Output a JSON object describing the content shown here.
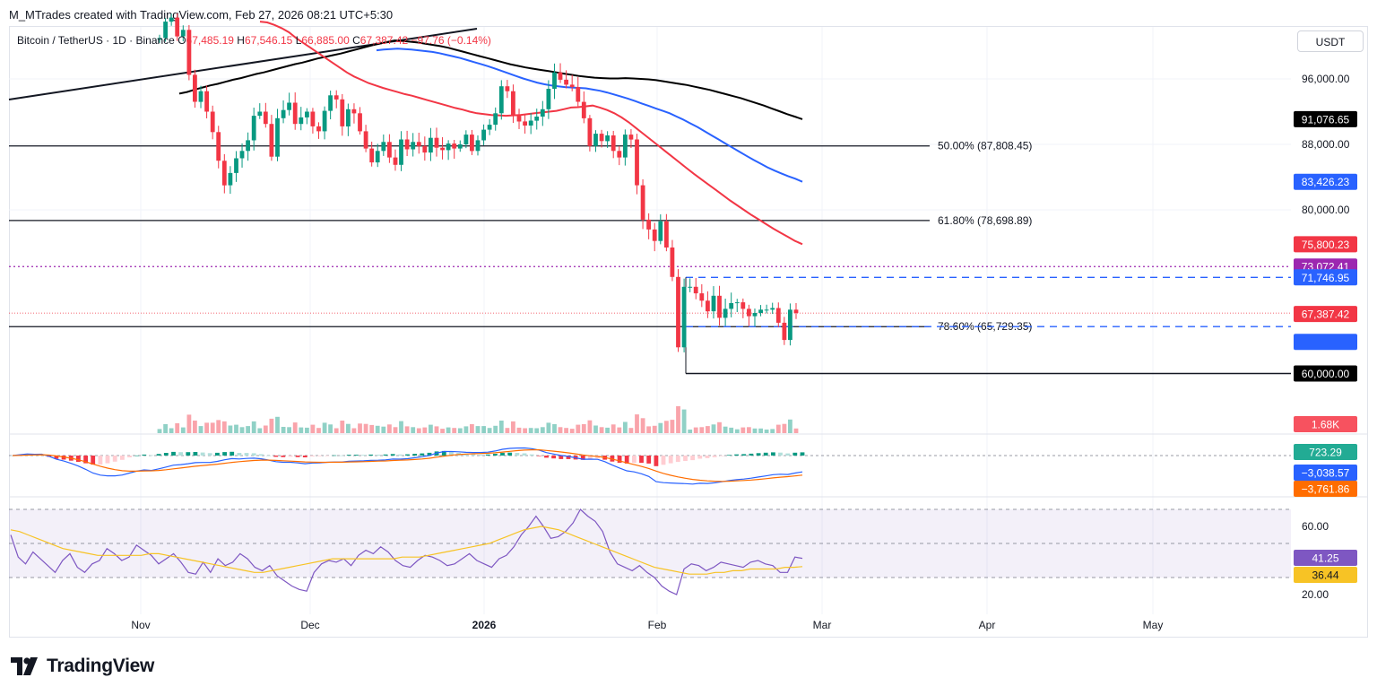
{
  "header": {
    "attribution": "M_MTrades created with TradingView.com, Feb 27, 2026 08:21 UTC+5:30",
    "symbol": "Bitcoin / TetherUS · 1D · Binance",
    "open_label": "O",
    "open": "67,485.19",
    "high_label": "H",
    "high": "67,546.15",
    "low_label": "L",
    "low": "66,885.00",
    "close_label": "C",
    "close": "67,387.42",
    "change": "−97.76 (−0.14%)",
    "currency": "USDT"
  },
  "brand": "TradingView",
  "colors": {
    "up": "#089981",
    "down": "#f23645",
    "ema50": "#f23645",
    "ema100": "#2962ff",
    "ema200": "#000000",
    "macd": "#2962ff",
    "signal": "#ff6d00",
    "rsi": "#7e57c2",
    "rsi_ma": "#f7c325"
  },
  "chart_data": [
    {
      "type": "candlestick",
      "title": "Bitcoin / TetherUS · 1D · Binance",
      "x_ticks": [
        "Nov",
        "Dec",
        "2026",
        "Feb",
        "Mar",
        "Apr",
        "May"
      ],
      "y_ticks": [
        "80,000.00",
        "88,000.00",
        "96,000.00"
      ],
      "ylim": [
        56000,
        104000
      ],
      "closes": [
        101000,
        103000,
        103500,
        101200,
        102000,
        96500,
        93200,
        94500,
        92000,
        89500,
        86000,
        83000,
        84500,
        86300,
        87200,
        88500,
        91500,
        92000,
        90500,
        86500,
        91200,
        92200,
        93100,
        90500,
        91300,
        92000,
        90200,
        89600,
        92100,
        94000,
        93500,
        90200,
        92300,
        91800,
        89600,
        87500,
        85800,
        87200,
        88300,
        86400,
        85500,
        88600,
        87400,
        88300,
        87800,
        87000,
        88800,
        87600,
        87300,
        88100,
        87500,
        88000,
        89200,
        87200,
        88500,
        89800,
        90400,
        91800,
        95100,
        94500,
        91500,
        90800,
        90300,
        90900,
        91400,
        92300,
        94800,
        96800,
        95900,
        95300,
        95000,
        93200,
        91200,
        87800,
        89300,
        88400,
        89100,
        87200,
        86400,
        89200,
        88600,
        83000,
        78800,
        77600,
        76200,
        78600,
        75400,
        71800,
        63200,
        70600,
        70600,
        69800,
        68900,
        67600,
        69500,
        66800,
        67900,
        68600,
        68700,
        67900,
        67000,
        67400,
        67800,
        67800,
        68000,
        66200,
        64100,
        67800,
        67387
      ],
      "volume_label": "1.68K",
      "horizontal_levels": [
        {
          "label": "50.00% (87,808.45)",
          "value": 87808.45
        },
        {
          "label": "61.80% (78,698.89)",
          "value": 78698.89
        },
        {
          "label": "78.60% (65,729.35)",
          "value": 65729.35
        },
        {
          "value": 73072.41,
          "tag": "73,072.41"
        },
        {
          "value": 71746.95,
          "tag": "71,746.95"
        },
        {
          "value": 60000.0,
          "tag": "60,000.00"
        }
      ],
      "series": [
        {
          "name": "EMA 200",
          "last": "91,076.65",
          "values": [
            94200,
            94400,
            94700,
            94950,
            95200,
            95400,
            95650,
            95900,
            96100,
            96350,
            96600,
            96800,
            97050,
            97300,
            97550,
            97800,
            98000,
            98250,
            98500,
            98700,
            98900,
            99100,
            99350,
            99600,
            99850,
            100100,
            100300,
            100500,
            100700,
            100650,
            100550,
            100450,
            100300,
            100150,
            100000,
            99800,
            99550,
            99300,
            99050,
            98800,
            98550,
            98300,
            98050,
            97800,
            97600,
            97400,
            97250,
            97100,
            96950,
            96800,
            96650,
            96500,
            96350,
            96250,
            96150,
            96100,
            96050,
            96050,
            96100,
            96050,
            96000,
            95950,
            95850,
            95700,
            95550,
            95400,
            95250,
            95050,
            94850,
            94650,
            94400,
            94150,
            93900,
            93650,
            93350,
            93050,
            92750,
            92400,
            92050,
            91700,
            91400,
            91076
          ]
        },
        {
          "name": "EMA 100",
          "last": "83,426.23",
          "values": [
            99500,
            99600,
            99650,
            99700,
            99650,
            99600,
            99500,
            99400,
            99300,
            99150,
            98950,
            98750,
            98550,
            98300,
            98050,
            97800,
            97550,
            97250,
            96950,
            96650,
            96350,
            96050,
            95800,
            95550,
            95350,
            95200,
            95100,
            95000,
            94950,
            94900,
            94850,
            94700,
            94550,
            94350,
            94100,
            93850,
            93600,
            93300,
            93000,
            92700,
            92400,
            92100,
            91800,
            91400,
            91000,
            90550,
            90100,
            89600,
            89100,
            88600,
            88100,
            87600,
            87100,
            86600,
            86100,
            85650,
            85200,
            84800,
            84450,
            84100,
            83800,
            83426
          ]
        },
        {
          "name": "EMA 50",
          "last": "75,800.23",
          "values": [
            103000,
            102900,
            102600,
            102200,
            101700,
            101000,
            100400,
            99800,
            99200,
            98600,
            98000,
            97400,
            96800,
            96300,
            95900,
            95500,
            95200,
            94900,
            94650,
            94400,
            94150,
            93950,
            93700,
            93450,
            93200,
            92950,
            92700,
            92450,
            92250,
            92000,
            91800,
            91700,
            91600,
            91550,
            91500,
            91550,
            91600,
            91700,
            91800,
            91900,
            92000,
            92100,
            92300,
            92500,
            92550,
            92650,
            92750,
            92500,
            92200,
            91800,
            91300,
            90700,
            90000,
            89300,
            88600,
            87900,
            87200,
            86500,
            85800,
            85100,
            84400,
            83750,
            83100,
            82450,
            81800,
            81150,
            80550,
            79950,
            79350,
            78800,
            78250,
            77700,
            77200,
            76700,
            76200,
            75800
          ]
        }
      ]
    },
    {
      "type": "histogram",
      "title": "MACD",
      "labels": {
        "histogram": "723.29",
        "macd": "−3,038.57",
        "signal": "−3,761.86"
      },
      "macd_last": -3038.57,
      "signal_last": -3761.86,
      "histogram_last": 723.29
    },
    {
      "type": "line",
      "title": "RSI",
      "y_ticks": [
        "60.00",
        "20.00"
      ],
      "ylim": [
        10,
        77
      ],
      "bands": [
        70,
        50,
        30
      ],
      "rsi_label": "41.25",
      "ma_label": "36.44",
      "rsi": [
        55,
        42,
        38,
        45,
        41,
        37,
        33,
        40,
        44,
        36,
        33,
        38,
        40,
        47,
        44,
        40,
        42,
        49,
        46,
        43,
        38,
        41,
        44,
        39,
        33,
        32,
        39,
        33,
        41,
        37,
        39,
        44,
        41,
        36,
        34,
        37,
        31,
        28,
        25,
        23,
        22,
        33,
        38,
        40,
        39,
        41,
        37,
        43,
        46,
        44,
        48,
        45,
        40,
        37,
        36,
        40,
        43,
        42,
        40,
        37,
        38,
        41,
        44,
        40,
        38,
        36,
        41,
        43,
        48,
        55,
        60,
        66,
        60,
        53,
        54,
        57,
        62,
        70,
        66,
        63,
        57,
        45,
        38,
        36,
        34,
        37,
        33,
        30,
        25,
        22,
        20,
        35,
        38,
        37,
        34,
        36,
        39,
        38,
        37,
        36,
        39,
        40,
        38,
        37,
        33,
        33,
        42,
        41.25
      ],
      "rsi_ma": [
        58,
        57,
        55,
        53,
        51,
        49,
        47,
        46,
        45,
        44,
        43,
        43,
        43,
        43,
        43,
        43,
        44,
        44,
        43,
        42,
        41,
        40,
        39,
        38,
        37,
        36,
        35,
        34,
        33,
        33,
        34,
        35,
        36,
        37,
        38,
        39,
        40,
        41,
        41,
        41,
        41,
        41,
        41,
        41,
        41,
        42,
        42,
        42,
        43,
        44,
        45,
        46,
        47,
        48,
        49,
        50,
        52,
        54,
        56,
        58,
        59,
        60,
        59,
        58,
        56,
        54,
        52,
        50,
        48,
        46,
        44,
        42,
        40,
        38,
        36,
        35,
        34,
        33,
        32,
        32,
        32,
        33,
        33,
        34,
        34,
        35,
        35,
        35,
        35,
        36,
        36,
        36.44
      ]
    }
  ]
}
